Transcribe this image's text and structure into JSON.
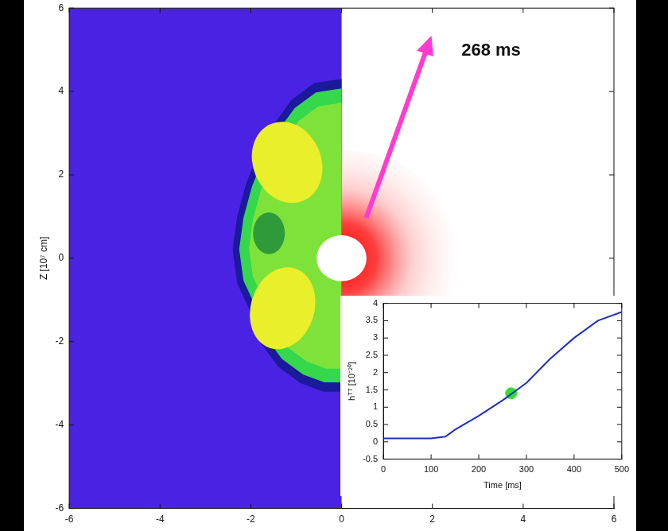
{
  "chart_data": [
    {
      "type": "image",
      "ylabel": "Z [10⁷ cm]",
      "xlim": [
        -6,
        6
      ],
      "ylim": [
        -6,
        6
      ],
      "xticks": [
        -6,
        -4,
        -2,
        0,
        2,
        4,
        6
      ],
      "yticks": [
        -6,
        -4,
        -2,
        0,
        2,
        4,
        6
      ],
      "annotation": "268 ms",
      "grid": false
    },
    {
      "type": "line",
      "xlabel": "Time [ms]",
      "ylabel": "hᵀᵀ [10⁻²⁰]",
      "x": [
        0,
        50,
        100,
        130,
        150,
        200,
        250,
        300,
        350,
        400,
        450,
        500
      ],
      "values": [
        0.1,
        0.1,
        0.1,
        0.15,
        0.35,
        0.75,
        1.2,
        1.7,
        2.4,
        3,
        3.5,
        3.75
      ],
      "color": "#1f2fbf",
      "marker": "none",
      "xlim": [
        0,
        500
      ],
      "ylim": [
        -0.5,
        4
      ],
      "xticks": [
        0,
        100,
        200,
        300,
        400,
        500
      ],
      "yticks": [
        -0.5,
        0,
        0.5,
        1,
        1.5,
        2,
        2.5,
        3,
        3.5,
        4
      ],
      "highlight": {
        "x": 268,
        "y": 1.4,
        "color": "#33dd33"
      },
      "grid": false
    }
  ]
}
